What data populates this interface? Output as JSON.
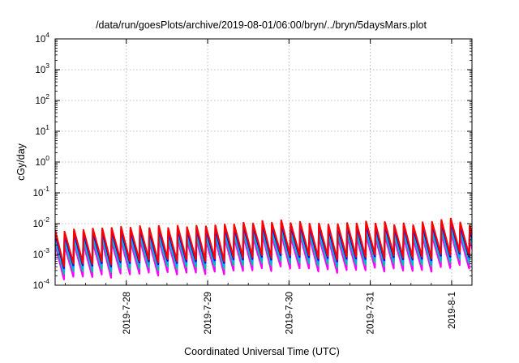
{
  "chart_data": {
    "type": "line",
    "title": "/data/run/goesPlots/archive/2019-08-01/06:00/bryn/../bryn/5daysMars.plot",
    "xlabel": "Coordinated Universal Time (UTC)",
    "ylabel": "cGy/day",
    "yscale": "log",
    "ylim": [
      0.0001,
      10000
    ],
    "xlim": [
      "2019-07-27 03:00",
      "2019-08-01 06:00"
    ],
    "grid": true,
    "legend": "none",
    "x_ticks": [
      {
        "t": "2019-07-28 00:00",
        "label": "2019-7-28"
      },
      {
        "t": "2019-07-29 00:00",
        "label": "2019-7-29"
      },
      {
        "t": "2019-07-30 00:00",
        "label": "2019-7-30"
      },
      {
        "t": "2019-07-31 00:00",
        "label": "2019-7-31"
      },
      {
        "t": "2019-08-01 00:00",
        "label": "2019-8-1"
      }
    ],
    "y_ticks": [
      {
        "value": 0.0001,
        "mantissa": "10",
        "exp": "-4"
      },
      {
        "value": 0.001,
        "mantissa": "10",
        "exp": "-3"
      },
      {
        "value": 0.01,
        "mantissa": "10",
        "exp": "-2"
      },
      {
        "value": 0.1,
        "mantissa": "10",
        "exp": "-1"
      },
      {
        "value": 1,
        "mantissa": "10",
        "exp": "0"
      },
      {
        "value": 10,
        "mantissa": "10",
        "exp": "1"
      },
      {
        "value": 100,
        "mantissa": "10",
        "exp": "2"
      },
      {
        "value": 1000,
        "mantissa": "10",
        "exp": "3"
      },
      {
        "value": 10000,
        "mantissa": "10",
        "exp": "4"
      }
    ],
    "cycle_start": "2019-07-27 03:00",
    "cycle_hours": 2.78,
    "peak_envelope": [
      {
        "t": "2019-07-27 03:00",
        "v": 0.0055
      },
      {
        "t": "2019-07-28 00:00",
        "v": 0.0075
      },
      {
        "t": "2019-07-29 00:00",
        "v": 0.008
      },
      {
        "t": "2019-07-29 20:00",
        "v": 0.012
      },
      {
        "t": "2019-07-30 12:00",
        "v": 0.009
      },
      {
        "t": "2019-07-31 00:00",
        "v": 0.011
      },
      {
        "t": "2019-07-31 12:00",
        "v": 0.009
      },
      {
        "t": "2019-08-01 00:00",
        "v": 0.014
      },
      {
        "t": "2019-08-01 06:00",
        "v": 0.0075
      }
    ],
    "series": [
      {
        "color": "#ff0000",
        "peak_factor": 1.0,
        "trough_factor": 0.08
      },
      {
        "color": "#0000ff",
        "peak_factor": 0.8,
        "trough_factor": 0.07
      },
      {
        "color": "#00aaff",
        "peak_factor": 0.62,
        "trough_factor": 0.06
      },
      {
        "color": "#00c0a0",
        "peak_factor": 0.48,
        "trough_factor": 0.045
      },
      {
        "color": "#ff00ff",
        "peak_factor": 0.36,
        "trough_factor": 0.03
      }
    ]
  }
}
